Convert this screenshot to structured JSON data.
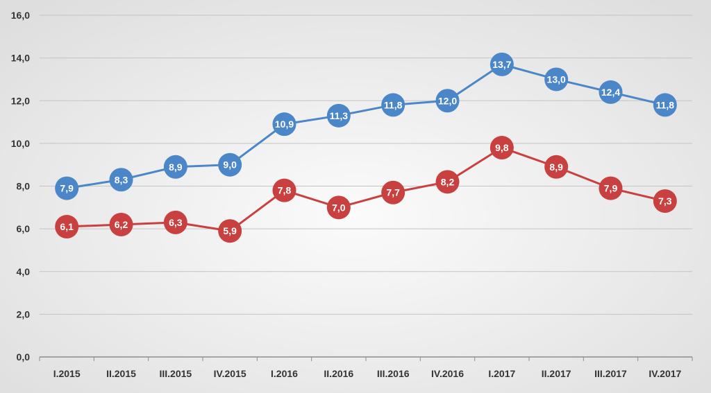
{
  "chart_data": {
    "type": "line",
    "categories": [
      "I.2015",
      "II.2015",
      "III.2015",
      "IV.2015",
      "I.2016",
      "II.2016",
      "III.2016",
      "IV.2016",
      "I.2017",
      "II.2017",
      "III.2017",
      "IV.2017"
    ],
    "series": [
      {
        "color": "#4a86c8",
        "values": [
          7.9,
          8.3,
          8.9,
          9.0,
          10.9,
          11.3,
          11.8,
          12.0,
          13.7,
          13.0,
          12.4,
          11.8
        ],
        "labels": [
          "7,9",
          "8,3",
          "8,9",
          "9,0",
          "10,9",
          "11,3",
          "11,8",
          "12,0",
          "13,7",
          "13,0",
          "12,4",
          "11,8"
        ]
      },
      {
        "color": "#c8403f",
        "values": [
          6.1,
          6.2,
          6.3,
          5.9,
          7.8,
          7.0,
          7.7,
          8.2,
          9.8,
          8.9,
          7.9,
          7.3
        ],
        "labels": [
          "6,1",
          "6,2",
          "6,3",
          "5,9",
          "7,8",
          "7,0",
          "7,7",
          "8,2",
          "9,8",
          "8,9",
          "7,9",
          "7,3"
        ]
      }
    ],
    "yticks": [
      0,
      2,
      4,
      6,
      8,
      10,
      12,
      14,
      16
    ],
    "ytick_labels": [
      "0,0",
      "2,0",
      "4,0",
      "6,0",
      "8,0",
      "10,0",
      "12,0",
      "14,0",
      "16,0"
    ],
    "ylim": [
      0,
      16
    ],
    "grid": true,
    "background": [
      "#e6e6e6",
      "#f7f7f7"
    ]
  }
}
